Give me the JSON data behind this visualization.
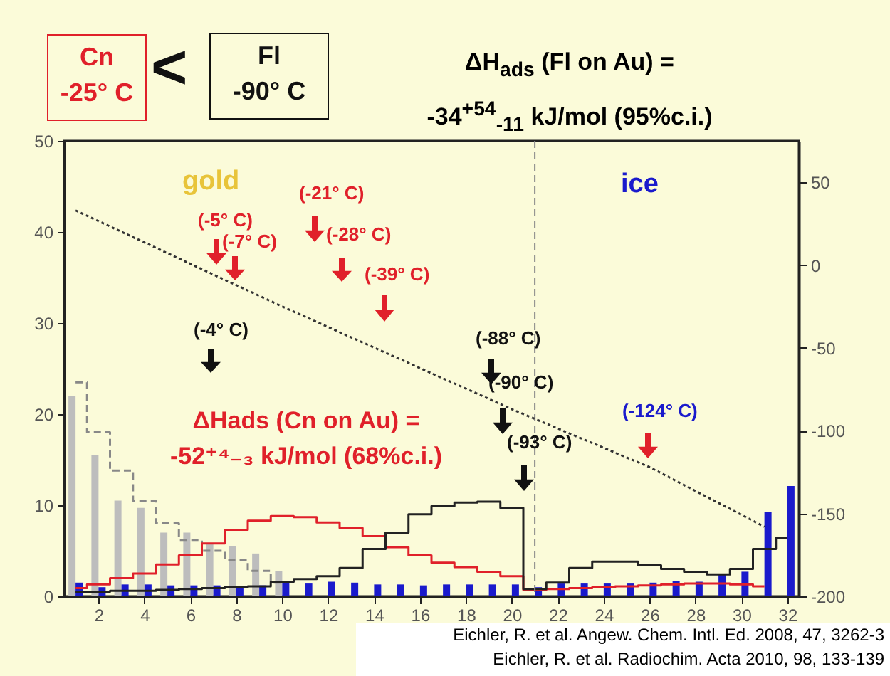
{
  "chart_data": {
    "type": "bar",
    "title": "ΔH$_{ads}$ (Fl on Au) =\n-34$^{+54}$$_{-11}$ kJ/mol (95%c.i.)",
    "series": [
      {
        "type": "bar",
        "color": "#bdbdbd",
        "x": [
          1,
          2,
          3,
          4,
          5,
          6,
          7,
          8,
          9,
          10
        ],
        "values": [
          22,
          15.5,
          10.5,
          9.7,
          7,
          7,
          5.7,
          5.5,
          4.7,
          2.8
        ]
      },
      {
        "type": "bar",
        "color": "#1a1acc",
        "x": [
          1,
          2,
          3,
          4,
          5,
          6,
          7,
          8,
          9,
          10,
          11,
          12,
          13,
          14,
          15,
          16,
          17,
          18,
          19,
          20,
          21,
          22,
          23,
          24,
          25,
          26,
          27,
          28,
          29,
          30,
          31,
          32
        ],
        "values": [
          1.5,
          1,
          1.3,
          1.3,
          1.2,
          1.2,
          1.2,
          1.1,
          1.2,
          1.5,
          1.4,
          1.6,
          1.5,
          1.3,
          1.3,
          1.2,
          1.3,
          1.3,
          1.3,
          1.3,
          1,
          1.4,
          1.4,
          1.4,
          1.4,
          1.5,
          1.7,
          1.6,
          2.5,
          2.7,
          9.3,
          12.1
        ]
      },
      {
        "type": "step",
        "color": "#888888",
        "line_style": "dashed",
        "x": [
          1,
          2,
          3,
          4,
          5,
          6,
          7,
          8,
          9,
          10
        ],
        "values": [
          23.5,
          18,
          13.8,
          10.5,
          8,
          6.2,
          5,
          4,
          2.8,
          1.5
        ]
      },
      {
        "type": "step",
        "color": "#e0202a",
        "x": [
          1,
          2,
          3,
          4,
          5,
          6,
          7,
          8,
          9,
          10,
          11,
          12,
          13,
          14,
          15,
          16,
          17,
          18,
          19,
          20,
          21,
          22,
          23,
          24,
          25,
          26,
          27,
          28,
          29,
          30,
          31
        ],
        "values": [
          0.9,
          1.3,
          2,
          2.5,
          3.5,
          4.5,
          5.8,
          7.3,
          8.3,
          8.8,
          8.7,
          8.1,
          7.5,
          6.6,
          5.4,
          4.5,
          3.7,
          3.2,
          2.7,
          2.2,
          0.7,
          0.8,
          0.9,
          1,
          1.1,
          1.2,
          1.3,
          1.4,
          1.4,
          1.3,
          1.1
        ]
      },
      {
        "type": "step",
        "color": "#222222",
        "x": [
          1,
          2,
          3,
          4,
          5,
          6,
          7,
          8,
          9,
          10,
          11,
          12,
          13,
          14,
          15,
          16,
          17,
          18,
          19,
          20,
          21,
          22,
          23,
          24,
          25,
          26,
          27,
          28,
          29,
          30,
          31,
          32
        ],
        "values": [
          0.5,
          0.5,
          0.6,
          0.6,
          0.7,
          0.8,
          0.9,
          1,
          1.1,
          1.6,
          1.9,
          2.2,
          3.1,
          5.2,
          7,
          9,
          9.9,
          10.3,
          10.4,
          9.7,
          0.8,
          1.5,
          3.1,
          3.8,
          3.8,
          3.4,
          3,
          2.7,
          2.4,
          3,
          5.2,
          6.4
        ]
      },
      {
        "type": "line",
        "axis": "y2",
        "color": "#333333",
        "line_style": "dotted",
        "x": [
          1,
          10,
          20,
          26,
          31
        ],
        "values": [
          33,
          -25,
          -87,
          -122,
          -158
        ]
      }
    ],
    "xlim": [
      0.5,
      32.5
    ],
    "xticks": [
      2,
      4,
      6,
      8,
      10,
      12,
      14,
      16,
      18,
      20,
      22,
      24,
      26,
      28,
      30,
      32
    ],
    "ylim": [
      0,
      50
    ],
    "yticks": [
      0,
      10,
      20,
      30,
      40,
      50
    ],
    "y2lim": [
      -200,
      75
    ],
    "y2ticks": [
      -200,
      -150,
      -100,
      -50,
      0,
      50
    ],
    "ref_lines": [
      {
        "axis": "x",
        "value": 21,
        "color": "#888888",
        "line_style": "dashed"
      }
    ],
    "annotations": [
      "Cn\n-25° C",
      "<",
      "Fl\n-90° C",
      "ΔHads (Cn on Au) =\n-52⁺⁴₋₃ kJ/mol (68%c.i.)",
      "gold",
      "ice",
      "(-5° C)",
      "(-7° C)",
      "(-21° C)",
      "(-28° C)",
      "(-39° C)",
      "(-4° C)",
      "(-88° C)",
      "(-90° C)",
      "(-93° C)",
      "(-124° C)",
      "Eichler, R. et al. Angew. Chem. Intl. Ed. 2008, 47, 3262-3",
      "Eichler, R. et al. Radiochim. Acta 2010, 98, 133-139"
    ],
    "grid": false
  }
}
